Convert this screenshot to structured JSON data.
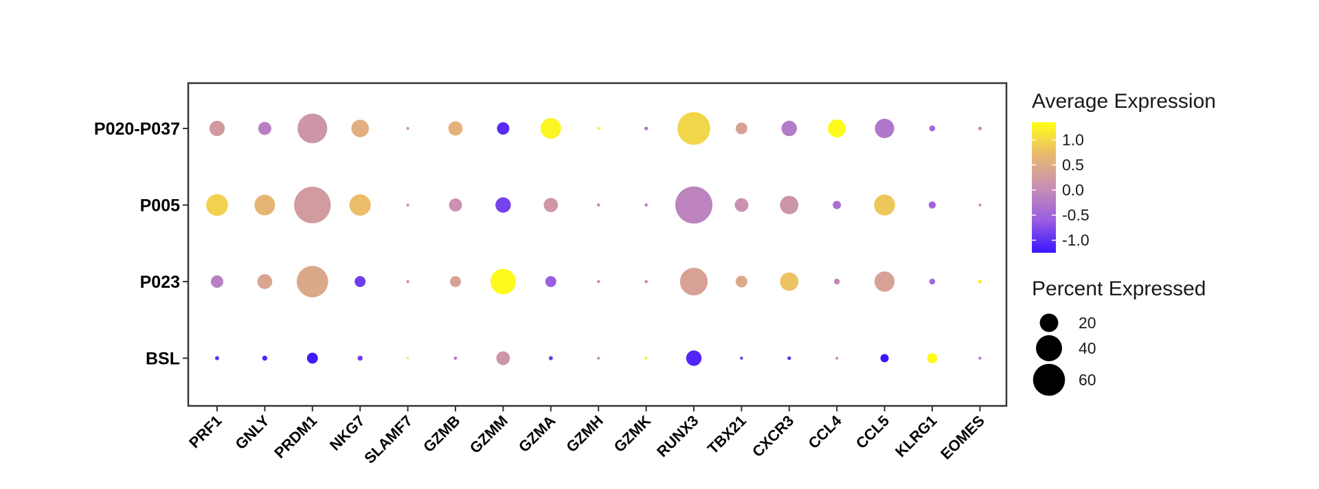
{
  "chart_data": {
    "type": "dot",
    "categories_x": [
      "PRF1",
      "GNLY",
      "PRDM1",
      "NKG7",
      "SLAMF7",
      "GZMB",
      "GZMM",
      "GZMA",
      "GZMH",
      "GZMK",
      "RUNX3",
      "TBX21",
      "CXCR3",
      "CCL4",
      "CCL5",
      "KLRG1",
      "EOMES"
    ],
    "categories_y": [
      "P020-P037",
      "P005",
      "P023",
      "BSL"
    ],
    "color_legend": {
      "title": "Average Expression",
      "ticks": [
        "1.0",
        "0.5",
        "0.0",
        "-0.5",
        "-1.0"
      ],
      "tick_values": [
        1.0,
        0.5,
        0.0,
        -0.5,
        -1.0
      ],
      "range": [
        -1.25,
        1.35
      ],
      "colors": {
        "low": "#3b14ff",
        "mid": "#c78fb4",
        "high": "#ffff14"
      }
    },
    "size_legend": {
      "title": "Percent Expressed",
      "values": [
        20,
        40,
        60
      ],
      "labels": [
        "20",
        "40",
        "60"
      ]
    },
    "series": [
      {
        "name": "P020-P037",
        "pct": [
          14,
          10,
          52,
          18,
          0.5,
          12,
          9,
          25,
          0.5,
          0.8,
          63,
          8,
          14,
          19,
          22,
          2,
          0.8
        ],
        "expr": [
          0.2,
          -0.2,
          0.1,
          0.5,
          0.0,
          0.55,
          -1.05,
          1.25,
          1.2,
          -0.3,
          0.95,
          0.3,
          -0.25,
          1.3,
          -0.3,
          -0.5,
          0.0
        ]
      },
      {
        "name": "P005",
        "pct": [
          28,
          25,
          79,
          27,
          0.5,
          10,
          14,
          12,
          0.6,
          0.6,
          81,
          11,
          20,
          4,
          26,
          3,
          0.5
        ],
        "expr": [
          0.9,
          0.6,
          0.2,
          0.7,
          0.0,
          0.05,
          -0.85,
          0.15,
          0.0,
          -0.2,
          -0.15,
          0.05,
          0.1,
          -0.4,
          0.8,
          -0.55,
          0.0
        ]
      },
      {
        "name": "P023",
        "pct": [
          9,
          13,
          58,
          7,
          0.5,
          7,
          38,
          7,
          0.6,
          0.6,
          45,
          8,
          20,
          2,
          24,
          2,
          0.8
        ],
        "expr": [
          -0.2,
          0.35,
          0.4,
          -0.9,
          0.0,
          0.3,
          1.3,
          -0.6,
          0.0,
          0.0,
          0.3,
          0.4,
          0.75,
          -0.1,
          0.3,
          -0.5,
          1.2
        ]
      },
      {
        "name": "BSL",
        "pct": [
          1,
          1.5,
          7,
          1.5,
          0.3,
          0.6,
          11,
          1,
          0.5,
          0.5,
          14,
          0.6,
          0.8,
          0.5,
          4,
          6,
          0.5
        ],
        "expr": [
          -1.0,
          -1.1,
          -1.2,
          -0.9,
          1.1,
          -0.3,
          0.1,
          -0.9,
          0.0,
          1.25,
          -1.1,
          -0.8,
          -1.0,
          0.0,
          -1.25,
          1.3,
          -0.3
        ]
      }
    ],
    "grid": false,
    "legend_position": "right"
  }
}
